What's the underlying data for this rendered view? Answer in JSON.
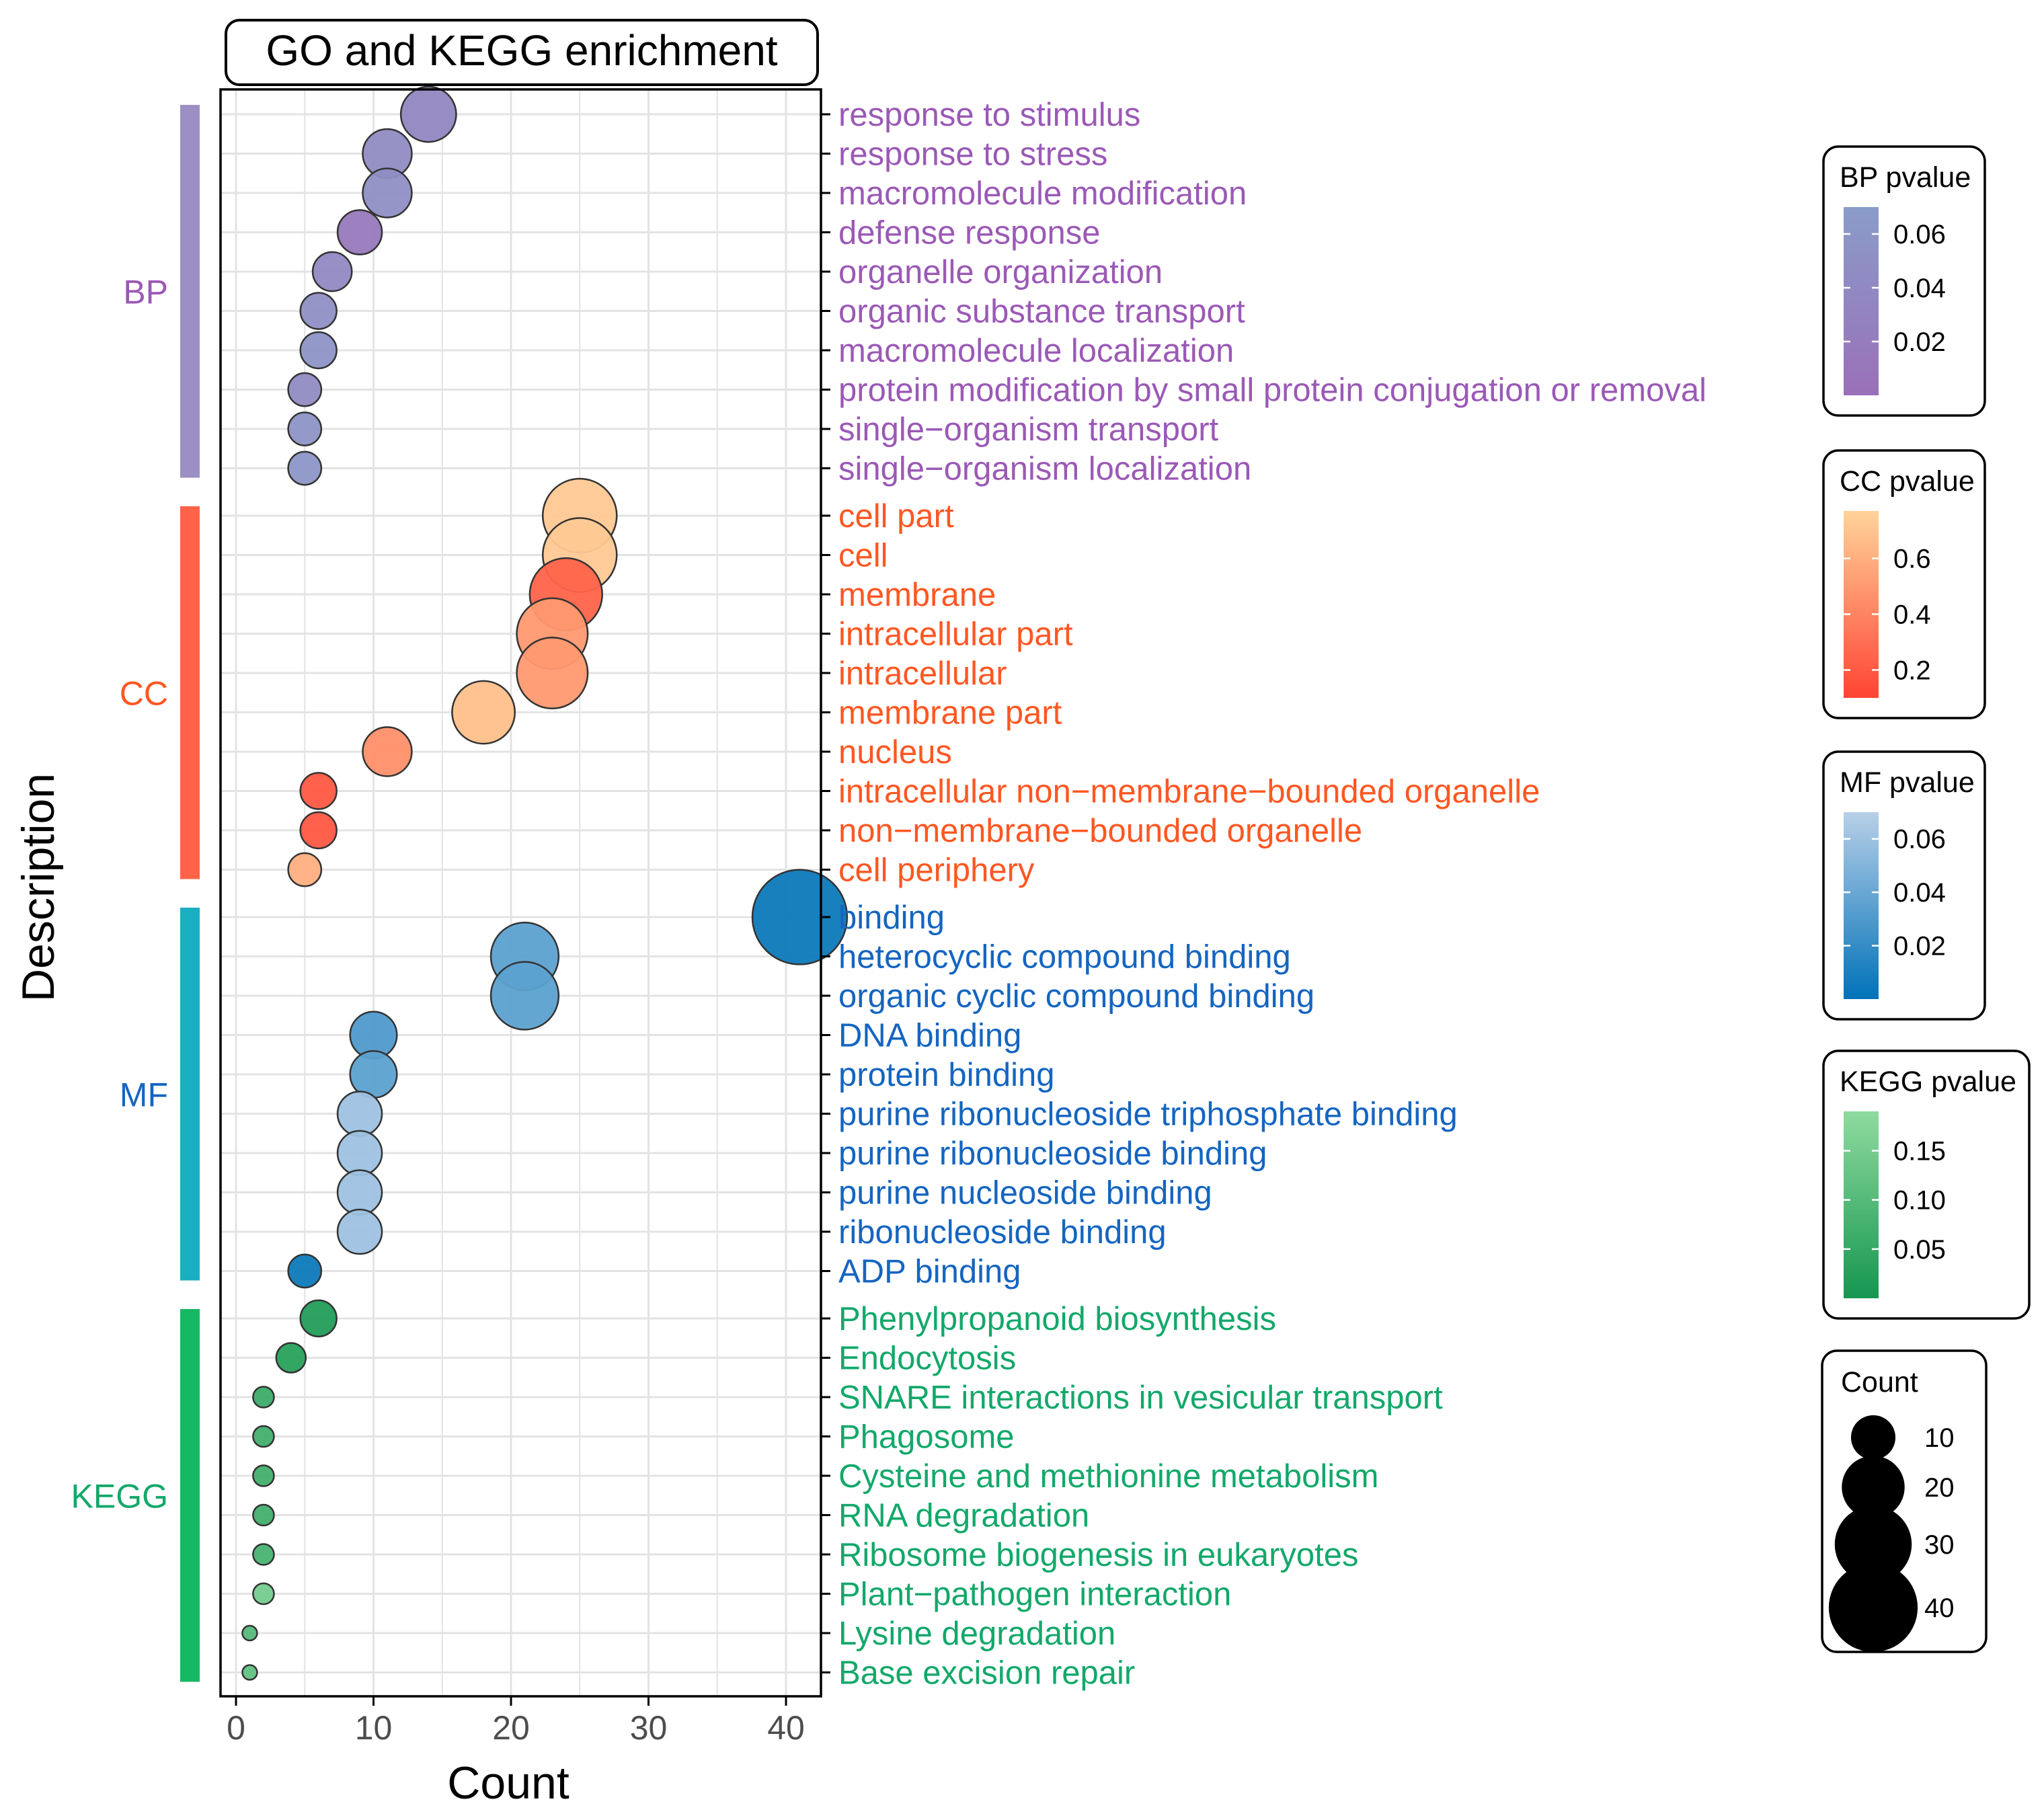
{
  "chart_data": {
    "type": "scatter",
    "title": "GO and KEGG enrichment",
    "xlabel": "Count",
    "ylabel": "Description",
    "xlim": [
      -1.5,
      43
    ],
    "xticks": [
      0,
      10,
      20,
      30,
      40
    ],
    "xtick_labels": [
      "0",
      "10",
      "20",
      "30",
      "40"
    ],
    "grid": true,
    "size_legend": {
      "title": "Count",
      "values": [
        10,
        20,
        30,
        40
      ],
      "labels": [
        "10",
        "20",
        "30",
        "40"
      ]
    },
    "groups": [
      {
        "name": "BP",
        "color": "#9B59B6",
        "bar_color": "#9B8FC4",
        "legend_title": "BP pvalue",
        "legend_range": [
          0,
          0.07
        ],
        "legend_ticks": [
          0.06,
          0.04,
          0.02
        ],
        "legend_tick_labels": [
          "0.06",
          "0.04",
          "0.02"
        ],
        "gradient": [
          "#8A9CC9",
          "#9A70B8"
        ],
        "terms": [
          {
            "label": "response to stimulus",
            "count": 14,
            "pvalue": 0.035
          },
          {
            "label": "response to stress",
            "count": 11,
            "pvalue": 0.045
          },
          {
            "label": "macromolecule modification",
            "count": 11,
            "pvalue": 0.05
          },
          {
            "label": "defense response",
            "count": 9,
            "pvalue": 0.015
          },
          {
            "label": "organelle organization",
            "count": 7,
            "pvalue": 0.04
          },
          {
            "label": "organic substance transport",
            "count": 6,
            "pvalue": 0.05
          },
          {
            "label": "macromolecule localization",
            "count": 6,
            "pvalue": 0.055
          },
          {
            "label": "protein modification by small protein conjugation or removal",
            "count": 5,
            "pvalue": 0.045
          },
          {
            "label": "single−organism transport",
            "count": 5,
            "pvalue": 0.055
          },
          {
            "label": "single−organism localization",
            "count": 5,
            "pvalue": 0.06
          }
        ]
      },
      {
        "name": "CC",
        "color": "#FF5722",
        "bar_color": "#FF6347",
        "legend_title": "CC pvalue",
        "legend_range": [
          0.1,
          0.77
        ],
        "legend_ticks": [
          0.6,
          0.4,
          0.2
        ],
        "legend_tick_labels": [
          "0.6",
          "0.4",
          "0.2"
        ],
        "gradient": [
          "#FFD39A",
          "#FF4433"
        ],
        "terms": [
          {
            "label": "cell part",
            "count": 25,
            "pvalue": 0.72
          },
          {
            "label": "cell",
            "count": 25,
            "pvalue": 0.72
          },
          {
            "label": "membrane",
            "count": 24,
            "pvalue": 0.25
          },
          {
            "label": "intracellular part",
            "count": 23,
            "pvalue": 0.5
          },
          {
            "label": "intracellular",
            "count": 23,
            "pvalue": 0.5
          },
          {
            "label": "membrane part",
            "count": 18,
            "pvalue": 0.68
          },
          {
            "label": "nucleus",
            "count": 11,
            "pvalue": 0.45
          },
          {
            "label": "intracellular non−membrane−bounded organelle",
            "count": 6,
            "pvalue": 0.2
          },
          {
            "label": "non−membrane−bounded organelle",
            "count": 6,
            "pvalue": 0.2
          },
          {
            "label": "cell periphery",
            "count": 5,
            "pvalue": 0.6
          }
        ]
      },
      {
        "name": "MF",
        "color": "#1565C0",
        "bar_color": "#1AAFC0",
        "legend_title": "MF pvalue",
        "legend_range": [
          0,
          0.07
        ],
        "legend_ticks": [
          0.06,
          0.04,
          0.02
        ],
        "legend_tick_labels": [
          "0.06",
          "0.04",
          "0.02"
        ],
        "gradient": [
          "#B8CFE8",
          "#0072B8"
        ],
        "terms": [
          {
            "label": "binding",
            "count": 41,
            "pvalue": 0.005
          },
          {
            "label": "heterocyclic compound binding",
            "count": 21,
            "pvalue": 0.035
          },
          {
            "label": "organic cyclic compound binding",
            "count": 21,
            "pvalue": 0.035
          },
          {
            "label": "DNA binding",
            "count": 10,
            "pvalue": 0.03
          },
          {
            "label": "protein binding",
            "count": 10,
            "pvalue": 0.035
          },
          {
            "label": "purine ribonucleoside triphosphate binding",
            "count": 9,
            "pvalue": 0.06
          },
          {
            "label": "purine ribonucleoside binding",
            "count": 9,
            "pvalue": 0.06
          },
          {
            "label": "purine nucleoside binding",
            "count": 9,
            "pvalue": 0.06
          },
          {
            "label": "ribonucleoside binding",
            "count": 9,
            "pvalue": 0.06
          },
          {
            "label": "ADP binding",
            "count": 5,
            "pvalue": 0.005
          }
        ]
      },
      {
        "name": "KEGG",
        "color": "#13A86A",
        "bar_color": "#16B864",
        "legend_title": "KEGG pvalue",
        "legend_range": [
          0,
          0.19
        ],
        "legend_ticks": [
          0.15,
          0.1,
          0.05
        ],
        "legend_tick_labels": [
          "0.15",
          "0.10",
          "0.05"
        ],
        "gradient": [
          "#8FDB9F",
          "#159650"
        ],
        "terms": [
          {
            "label": "Phenylpropanoid biosynthesis",
            "count": 6,
            "pvalue": 0.02
          },
          {
            "label": "Endocytosis",
            "count": 4,
            "pvalue": 0.03
          },
          {
            "label": "SNARE interactions in vesicular transport",
            "count": 2,
            "pvalue": 0.06
          },
          {
            "label": "Phagosome",
            "count": 2,
            "pvalue": 0.07
          },
          {
            "label": "Cysteine and methionine metabolism",
            "count": 2,
            "pvalue": 0.07
          },
          {
            "label": "RNA degradation",
            "count": 2,
            "pvalue": 0.07
          },
          {
            "label": "Ribosome biogenesis in eukaryotes",
            "count": 2,
            "pvalue": 0.08
          },
          {
            "label": "Plant−pathogen interaction",
            "count": 2,
            "pvalue": 0.15
          },
          {
            "label": "Lysine degradation",
            "count": 1,
            "pvalue": 0.1
          },
          {
            "label": "Base excision repair",
            "count": 1,
            "pvalue": 0.12
          }
        ]
      }
    ]
  }
}
